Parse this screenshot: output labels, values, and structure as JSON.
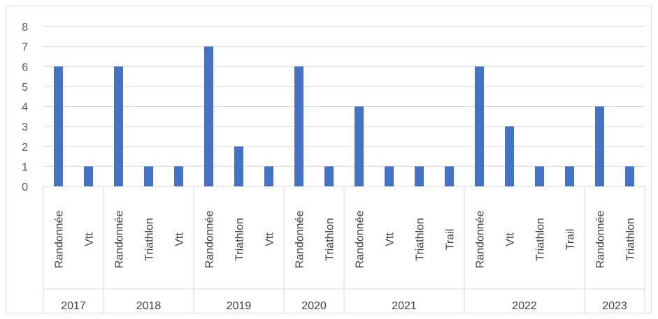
{
  "chart_data": {
    "type": "bar",
    "title": "",
    "xlabel": "",
    "ylabel": "",
    "ylim": [
      0,
      8
    ],
    "yticks": [
      0,
      1,
      2,
      3,
      4,
      5,
      6,
      7,
      8
    ],
    "grid": true,
    "legend": "none",
    "bar_color": "#4472C4",
    "groups": [
      {
        "year": "2017",
        "categories": [
          "Randonnée",
          "Vtt"
        ],
        "values": [
          6,
          1
        ]
      },
      {
        "year": "2018",
        "categories": [
          "Randonnée",
          "Triathlon",
          "Vtt"
        ],
        "values": [
          6,
          1,
          1
        ]
      },
      {
        "year": "2019",
        "categories": [
          "Randonnée",
          "Triathlon",
          "Vtt"
        ],
        "values": [
          7,
          2,
          1
        ]
      },
      {
        "year": "2020",
        "categories": [
          "Randonnée",
          "Triathlon"
        ],
        "values": [
          6,
          1
        ]
      },
      {
        "year": "2021",
        "categories": [
          "Randonnée",
          "Vtt",
          "Triathlon",
          "Trail"
        ],
        "values": [
          4,
          1,
          1,
          1
        ]
      },
      {
        "year": "2022",
        "categories": [
          "Randonnée",
          "Vtt",
          "Triathlon",
          "Trail"
        ],
        "values": [
          6,
          3,
          1,
          1
        ]
      },
      {
        "year": "2023",
        "categories": [
          "Randonnée",
          "Triathlon"
        ],
        "values": [
          4,
          1
        ]
      }
    ]
  }
}
